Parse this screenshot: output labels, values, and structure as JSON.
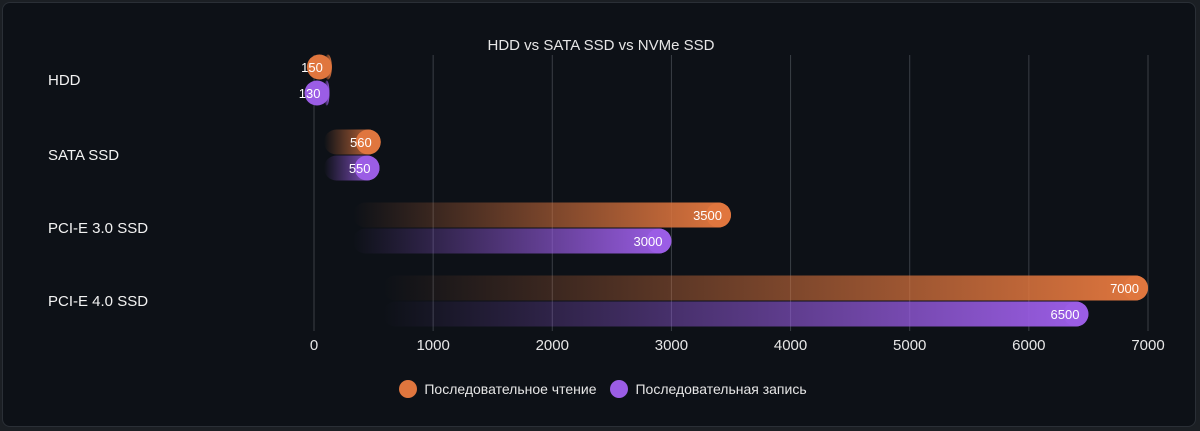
{
  "chart_data": {
    "type": "bar",
    "orientation": "horizontal",
    "title": "HDD vs SATA SSD vs NVMe SSD",
    "categories": [
      "HDD",
      "SATA SSD",
      "PCI-E 3.0 SSD",
      "PCI-E 4.0 SSD"
    ],
    "series": [
      {
        "name": "Последовательное чтение",
        "values": [
          150,
          560,
          3500,
          7000
        ],
        "color": "#e0763e"
      },
      {
        "name": "Последовательная запись",
        "values": [
          130,
          550,
          3000,
          6500
        ],
        "color": "#9b5de5"
      }
    ],
    "xlim": [
      0,
      7000
    ],
    "xticks": [
      0,
      1000,
      2000,
      3000,
      4000,
      5000,
      6000,
      7000
    ],
    "grid": true,
    "legend": "bottom-center"
  }
}
